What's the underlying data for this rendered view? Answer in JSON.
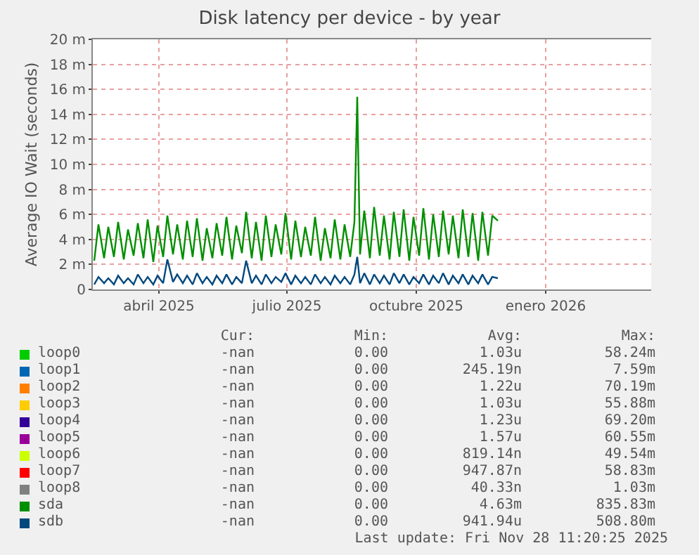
{
  "chart_data": {
    "type": "line",
    "title": "Disk latency per device - by year",
    "ylabel": "Average IO Wait (seconds)",
    "x": [
      "2025-02-14",
      "2025-02-17",
      "2025-02-21",
      "2025-02-24",
      "2025-02-28",
      "2025-03-03",
      "2025-03-07",
      "2025-03-10",
      "2025-03-14",
      "2025-03-17",
      "2025-03-21",
      "2025-03-24",
      "2025-03-28",
      "2025-03-31",
      "2025-04-04",
      "2025-04-07",
      "2025-04-11",
      "2025-04-14",
      "2025-04-18",
      "2025-04-21",
      "2025-04-25",
      "2025-04-28",
      "2025-05-02",
      "2025-05-05",
      "2025-05-09",
      "2025-05-12",
      "2025-05-16",
      "2025-05-19",
      "2025-05-23",
      "2025-05-26",
      "2025-05-30",
      "2025-06-02",
      "2025-06-06",
      "2025-06-09",
      "2025-06-13",
      "2025-06-16",
      "2025-06-20",
      "2025-06-23",
      "2025-06-27",
      "2025-06-30",
      "2025-07-04",
      "2025-07-07",
      "2025-07-11",
      "2025-07-14",
      "2025-07-18",
      "2025-07-21",
      "2025-07-25",
      "2025-07-28",
      "2025-08-01",
      "2025-08-04",
      "2025-08-08",
      "2025-08-11",
      "2025-08-15",
      "2025-08-18",
      "2025-08-20",
      "2025-08-22",
      "2025-08-25",
      "2025-08-29",
      "2025-09-01",
      "2025-09-05",
      "2025-09-08",
      "2025-09-12",
      "2025-09-15",
      "2025-09-19",
      "2025-09-22",
      "2025-09-26",
      "2025-09-29",
      "2025-10-03",
      "2025-10-06",
      "2025-10-10",
      "2025-10-13",
      "2025-10-17",
      "2025-10-20",
      "2025-10-24",
      "2025-10-27",
      "2025-10-31",
      "2025-11-03",
      "2025-11-07",
      "2025-11-10",
      "2025-11-14",
      "2025-11-17",
      "2025-11-21",
      "2025-11-24",
      "2025-11-28"
    ],
    "series": [
      {
        "name": "loop0",
        "color": "#00cc00",
        "values": [
          null,
          null,
          null,
          null,
          null,
          null,
          null,
          null,
          null,
          null,
          null,
          null,
          null,
          null,
          null,
          null,
          null,
          null,
          null,
          null,
          null,
          null,
          null,
          null,
          null,
          null,
          null,
          null,
          null,
          null,
          null,
          null,
          null,
          null,
          null,
          null,
          null,
          null,
          null,
          null,
          null,
          null,
          null,
          null,
          null,
          null,
          null,
          null,
          null,
          null,
          null,
          null,
          null,
          null,
          null,
          null,
          null,
          null,
          null,
          null,
          null,
          null,
          null,
          null,
          null,
          null,
          null,
          null,
          null,
          null,
          null,
          null,
          null,
          null,
          null,
          null,
          null,
          null,
          null,
          null,
          null,
          null,
          null,
          null
        ]
      },
      {
        "name": "loop1",
        "color": "#0066b3",
        "values": [
          null,
          null,
          null,
          null,
          null,
          null,
          null,
          null,
          null,
          null,
          null,
          null,
          null,
          null,
          null,
          null,
          null,
          null,
          null,
          null,
          null,
          null,
          null,
          null,
          null,
          null,
          null,
          null,
          null,
          null,
          null,
          null,
          null,
          null,
          null,
          null,
          null,
          null,
          null,
          null,
          null,
          null,
          null,
          null,
          null,
          null,
          null,
          null,
          null,
          null,
          null,
          null,
          null,
          null,
          null,
          null,
          null,
          null,
          null,
          null,
          null,
          null,
          null,
          null,
          null,
          null,
          null,
          null,
          null,
          null,
          null,
          null,
          null,
          null,
          null,
          null,
          null,
          null,
          null,
          null,
          null,
          null,
          null,
          null
        ]
      },
      {
        "name": "loop2",
        "color": "#ff8000",
        "values": [
          null,
          null,
          null,
          null,
          null,
          null,
          null,
          null,
          null,
          null,
          null,
          null,
          null,
          null,
          null,
          null,
          null,
          null,
          null,
          null,
          null,
          null,
          null,
          null,
          null,
          null,
          null,
          null,
          null,
          null,
          null,
          null,
          null,
          null,
          null,
          null,
          null,
          null,
          null,
          null,
          null,
          null,
          null,
          null,
          null,
          null,
          null,
          null,
          null,
          null,
          null,
          null,
          null,
          null,
          null,
          null,
          null,
          null,
          null,
          null,
          null,
          null,
          null,
          null,
          null,
          null,
          null,
          null,
          null,
          null,
          null,
          null,
          null,
          null,
          null,
          null,
          null,
          null,
          null,
          null,
          null,
          null,
          null,
          null
        ]
      },
      {
        "name": "loop3",
        "color": "#ffcc00",
        "values": [
          null,
          null,
          null,
          null,
          null,
          null,
          null,
          null,
          null,
          null,
          null,
          null,
          null,
          null,
          null,
          null,
          null,
          null,
          null,
          null,
          null,
          null,
          null,
          null,
          null,
          null,
          null,
          null,
          null,
          null,
          null,
          null,
          null,
          null,
          null,
          null,
          null,
          null,
          null,
          null,
          null,
          null,
          null,
          null,
          null,
          null,
          null,
          null,
          null,
          null,
          null,
          null,
          null,
          null,
          null,
          null,
          null,
          null,
          null,
          null,
          null,
          null,
          null,
          null,
          null,
          null,
          null,
          null,
          null,
          null,
          null,
          null,
          null,
          null,
          null,
          null,
          null,
          null,
          null,
          null,
          null,
          null,
          null,
          null
        ]
      },
      {
        "name": "loop4",
        "color": "#330099",
        "values": [
          null,
          null,
          null,
          null,
          null,
          null,
          null,
          null,
          null,
          null,
          null,
          null,
          null,
          null,
          null,
          null,
          null,
          null,
          null,
          null,
          null,
          null,
          null,
          null,
          null,
          null,
          null,
          null,
          null,
          null,
          null,
          null,
          null,
          null,
          null,
          null,
          null,
          null,
          null,
          null,
          null,
          null,
          null,
          null,
          null,
          null,
          null,
          null,
          null,
          null,
          null,
          null,
          null,
          null,
          null,
          null,
          null,
          null,
          null,
          null,
          null,
          null,
          null,
          null,
          null,
          null,
          null,
          null,
          null,
          null,
          null,
          null,
          null,
          null,
          null,
          null,
          null,
          null,
          null,
          null,
          null,
          null,
          null,
          null
        ]
      },
      {
        "name": "loop5",
        "color": "#990099",
        "values": [
          null,
          null,
          null,
          null,
          null,
          null,
          null,
          null,
          null,
          null,
          null,
          null,
          null,
          null,
          null,
          null,
          null,
          null,
          null,
          null,
          null,
          null,
          null,
          null,
          null,
          null,
          null,
          null,
          null,
          null,
          null,
          null,
          null,
          null,
          null,
          null,
          null,
          null,
          null,
          null,
          null,
          null,
          null,
          null,
          null,
          null,
          null,
          null,
          null,
          null,
          null,
          null,
          null,
          null,
          null,
          null,
          null,
          null,
          null,
          null,
          null,
          null,
          null,
          null,
          null,
          null,
          null,
          null,
          null,
          null,
          null,
          null,
          null,
          null,
          null,
          null,
          null,
          null,
          null,
          null,
          null,
          null,
          null,
          null
        ]
      },
      {
        "name": "loop6",
        "color": "#ccff00",
        "values": [
          null,
          null,
          null,
          null,
          null,
          null,
          null,
          null,
          null,
          null,
          null,
          null,
          null,
          null,
          null,
          null,
          null,
          null,
          null,
          null,
          null,
          null,
          null,
          null,
          null,
          null,
          null,
          null,
          null,
          null,
          null,
          null,
          null,
          null,
          null,
          null,
          null,
          null,
          null,
          null,
          null,
          null,
          null,
          null,
          null,
          null,
          null,
          null,
          null,
          null,
          null,
          null,
          null,
          null,
          null,
          null,
          null,
          null,
          null,
          null,
          null,
          null,
          null,
          null,
          null,
          null,
          null,
          null,
          null,
          null,
          null,
          null,
          null,
          null,
          null,
          null,
          null,
          null,
          null,
          null,
          null,
          null,
          null,
          null
        ]
      },
      {
        "name": "loop7",
        "color": "#ff0000",
        "values": [
          null,
          null,
          null,
          null,
          null,
          null,
          null,
          null,
          null,
          null,
          null,
          null,
          null,
          null,
          null,
          null,
          null,
          null,
          null,
          null,
          null,
          null,
          null,
          null,
          null,
          null,
          null,
          null,
          null,
          null,
          null,
          null,
          null,
          null,
          null,
          null,
          null,
          null,
          null,
          null,
          null,
          null,
          null,
          null,
          null,
          null,
          null,
          null,
          null,
          null,
          null,
          null,
          null,
          null,
          null,
          null,
          null,
          null,
          null,
          null,
          null,
          null,
          null,
          null,
          null,
          null,
          null,
          null,
          null,
          null,
          null,
          null,
          null,
          null,
          null,
          null,
          null,
          null,
          null,
          null,
          null,
          null,
          null,
          null
        ]
      },
      {
        "name": "loop8",
        "color": "#808080",
        "values": [
          null,
          null,
          null,
          null,
          null,
          null,
          null,
          null,
          null,
          null,
          null,
          null,
          null,
          null,
          null,
          null,
          null,
          null,
          null,
          null,
          null,
          null,
          null,
          null,
          null,
          null,
          null,
          null,
          null,
          null,
          null,
          null,
          null,
          null,
          null,
          null,
          null,
          null,
          null,
          null,
          null,
          null,
          null,
          null,
          null,
          null,
          null,
          null,
          null,
          null,
          null,
          null,
          null,
          null,
          null,
          null,
          null,
          null,
          null,
          null,
          null,
          null,
          null,
          null,
          null,
          null,
          null,
          null,
          null,
          null,
          null,
          null,
          null,
          null,
          null,
          null,
          null,
          null,
          null,
          null,
          null,
          null,
          null,
          null
        ]
      },
      {
        "name": "sda",
        "color": "#008f00",
        "values": [
          2.3,
          5.2,
          2.5,
          5.0,
          2.6,
          5.4,
          2.4,
          4.8,
          2.7,
          5.3,
          2.5,
          5.6,
          2.2,
          5.1,
          2.6,
          5.9,
          2.8,
          5.2,
          2.4,
          5.5,
          2.6,
          5.7,
          2.3,
          4.9,
          2.5,
          5.3,
          2.7,
          5.8,
          2.4,
          5.1,
          2.9,
          6.2,
          2.5,
          5.4,
          2.3,
          5.9,
          2.6,
          5.2,
          2.8,
          6.1,
          2.4,
          5.5,
          2.6,
          5.0,
          2.7,
          5.8,
          2.3,
          4.9,
          2.5,
          5.6,
          2.4,
          5.2,
          2.6,
          5.4,
          15.4,
          2.8,
          6.3,
          2.5,
          6.6,
          2.7,
          5.9,
          2.4,
          6.2,
          2.6,
          6.4,
          2.3,
          5.8,
          2.7,
          6.5,
          2.4,
          6.0,
          2.6,
          6.3,
          2.8,
          5.9,
          2.5,
          6.4,
          2.6,
          6.1,
          2.3,
          6.2,
          2.7,
          5.9,
          5.5
        ]
      },
      {
        "name": "sdb",
        "color": "#00487d",
        "values": [
          0.4,
          1.0,
          0.5,
          0.9,
          0.4,
          1.1,
          0.5,
          0.9,
          0.4,
          1.2,
          0.5,
          1.0,
          0.4,
          1.1,
          0.5,
          2.4,
          0.6,
          1.2,
          0.5,
          1.1,
          0.4,
          1.3,
          0.5,
          1.0,
          0.4,
          1.1,
          0.5,
          1.2,
          0.4,
          1.0,
          0.5,
          2.3,
          0.5,
          1.1,
          0.4,
          1.2,
          0.5,
          1.0,
          0.6,
          1.3,
          0.4,
          1.1,
          0.5,
          1.0,
          0.4,
          1.2,
          0.5,
          1.0,
          0.4,
          1.1,
          0.5,
          1.0,
          0.4,
          1.2,
          2.6,
          0.5,
          1.3,
          0.4,
          1.2,
          0.5,
          1.1,
          0.4,
          1.3,
          0.5,
          1.2,
          0.4,
          1.0,
          0.5,
          1.2,
          0.4,
          1.1,
          0.5,
          1.3,
          0.4,
          1.1,
          0.5,
          1.2,
          0.4,
          1.1,
          0.5,
          1.2,
          0.4,
          1.0,
          0.9
        ]
      }
    ],
    "xlim": [
      "2025-02-13",
      "2026-03-17"
    ],
    "xticks": [
      {
        "value": "2025-04-01",
        "label": "abril 2025"
      },
      {
        "value": "2025-07-01",
        "label": "julio 2025"
      },
      {
        "value": "2025-10-01",
        "label": "octubre 2025"
      },
      {
        "value": "2026-01-01",
        "label": "enero 2026"
      }
    ],
    "ylim": [
      0,
      20
    ],
    "yticks": [
      0,
      {
        "value": 2,
        "label": "2 m"
      },
      {
        "value": 4,
        "label": "4 m"
      },
      {
        "value": 6,
        "label": "6 m"
      },
      {
        "value": 8,
        "label": "8 m"
      },
      {
        "value": 10,
        "label": "10 m"
      },
      {
        "value": 12,
        "label": "12 m"
      },
      {
        "value": 14,
        "label": "14 m"
      },
      {
        "value": 16,
        "label": "16 m"
      },
      {
        "value": 18,
        "label": "18 m"
      },
      {
        "value": 20,
        "label": "20 m"
      }
    ],
    "grid": true,
    "legend": "bottom",
    "marker": "none",
    "line_style": "solid",
    "annotations": [
      "Cur:    Min:    Avg:    Max:",
      "-nan 0.00 1.03u 58.24m",
      "-nan 0.00 245.19n 7.59m",
      "-nan 0.00 1.22u 70.19m",
      "-nan 0.00 1.03u 55.88m",
      "-nan 0.00 1.23u 69.20m",
      "-nan 0.00 1.57u 60.55m",
      "-nan 0.00 819.14n 49.54m",
      "-nan 0.00 947.87n 58.83m",
      "-nan 0.00 40.33n 1.03m",
      "-nan 0.00 4.63m 835.83m",
      "-nan 0.00 941.94u 508.80m",
      "Last update: Fri Nov 28 11:20:25 2025"
    ]
  }
}
